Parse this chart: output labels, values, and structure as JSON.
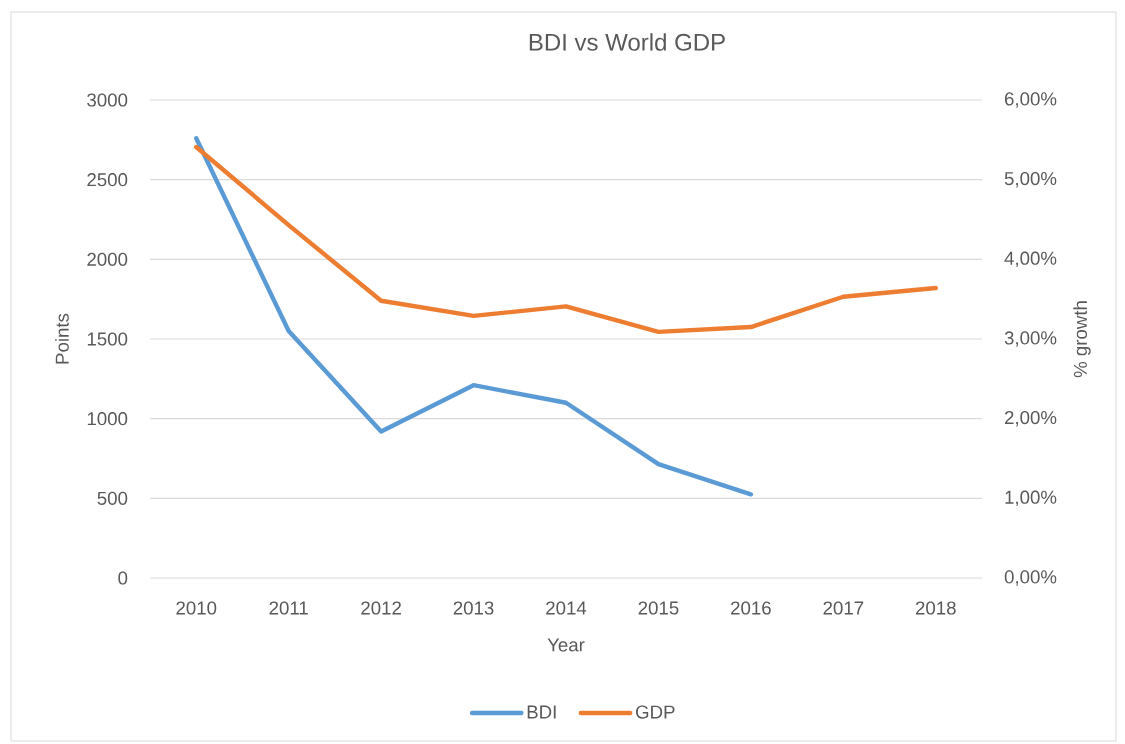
{
  "chart_data": {
    "type": "line",
    "title": "BDI vs World GDP",
    "xlabel": "Year",
    "ylabel": "Points",
    "y2label": "% growth",
    "categories": [
      "2010",
      "2011",
      "2012",
      "2013",
      "2014",
      "2015",
      "2016",
      "2017",
      "2018"
    ],
    "series": [
      {
        "name": "BDI",
        "color": "#5b9bd5",
        "values": [
          2760,
          1550,
          920,
          1210,
          1100,
          715,
          525,
          null,
          null
        ]
      },
      {
        "name": "GDP",
        "color": "#ed7d31",
        "axis": "y2",
        "values": [
          5.41,
          4.43,
          3.48,
          3.29,
          3.41,
          3.09,
          3.15,
          3.53,
          3.64
        ]
      }
    ],
    "ylim": [
      0,
      3000
    ],
    "yticks": [
      0,
      500,
      1000,
      1500,
      2000,
      2500,
      3000
    ],
    "y2lim": [
      0,
      6
    ],
    "y2ticks": [
      {
        "value": 0,
        "label": "0,00%"
      },
      {
        "value": 1,
        "label": "1,00%"
      },
      {
        "value": 2,
        "label": "2,00%"
      },
      {
        "value": 3,
        "label": "3,00%"
      },
      {
        "value": 4,
        "label": "4,00%"
      },
      {
        "value": 5,
        "label": "5,00%"
      },
      {
        "value": 6,
        "label": "6,00%"
      }
    ],
    "grid": "y",
    "legend": "bottom",
    "line_style": "solid"
  }
}
